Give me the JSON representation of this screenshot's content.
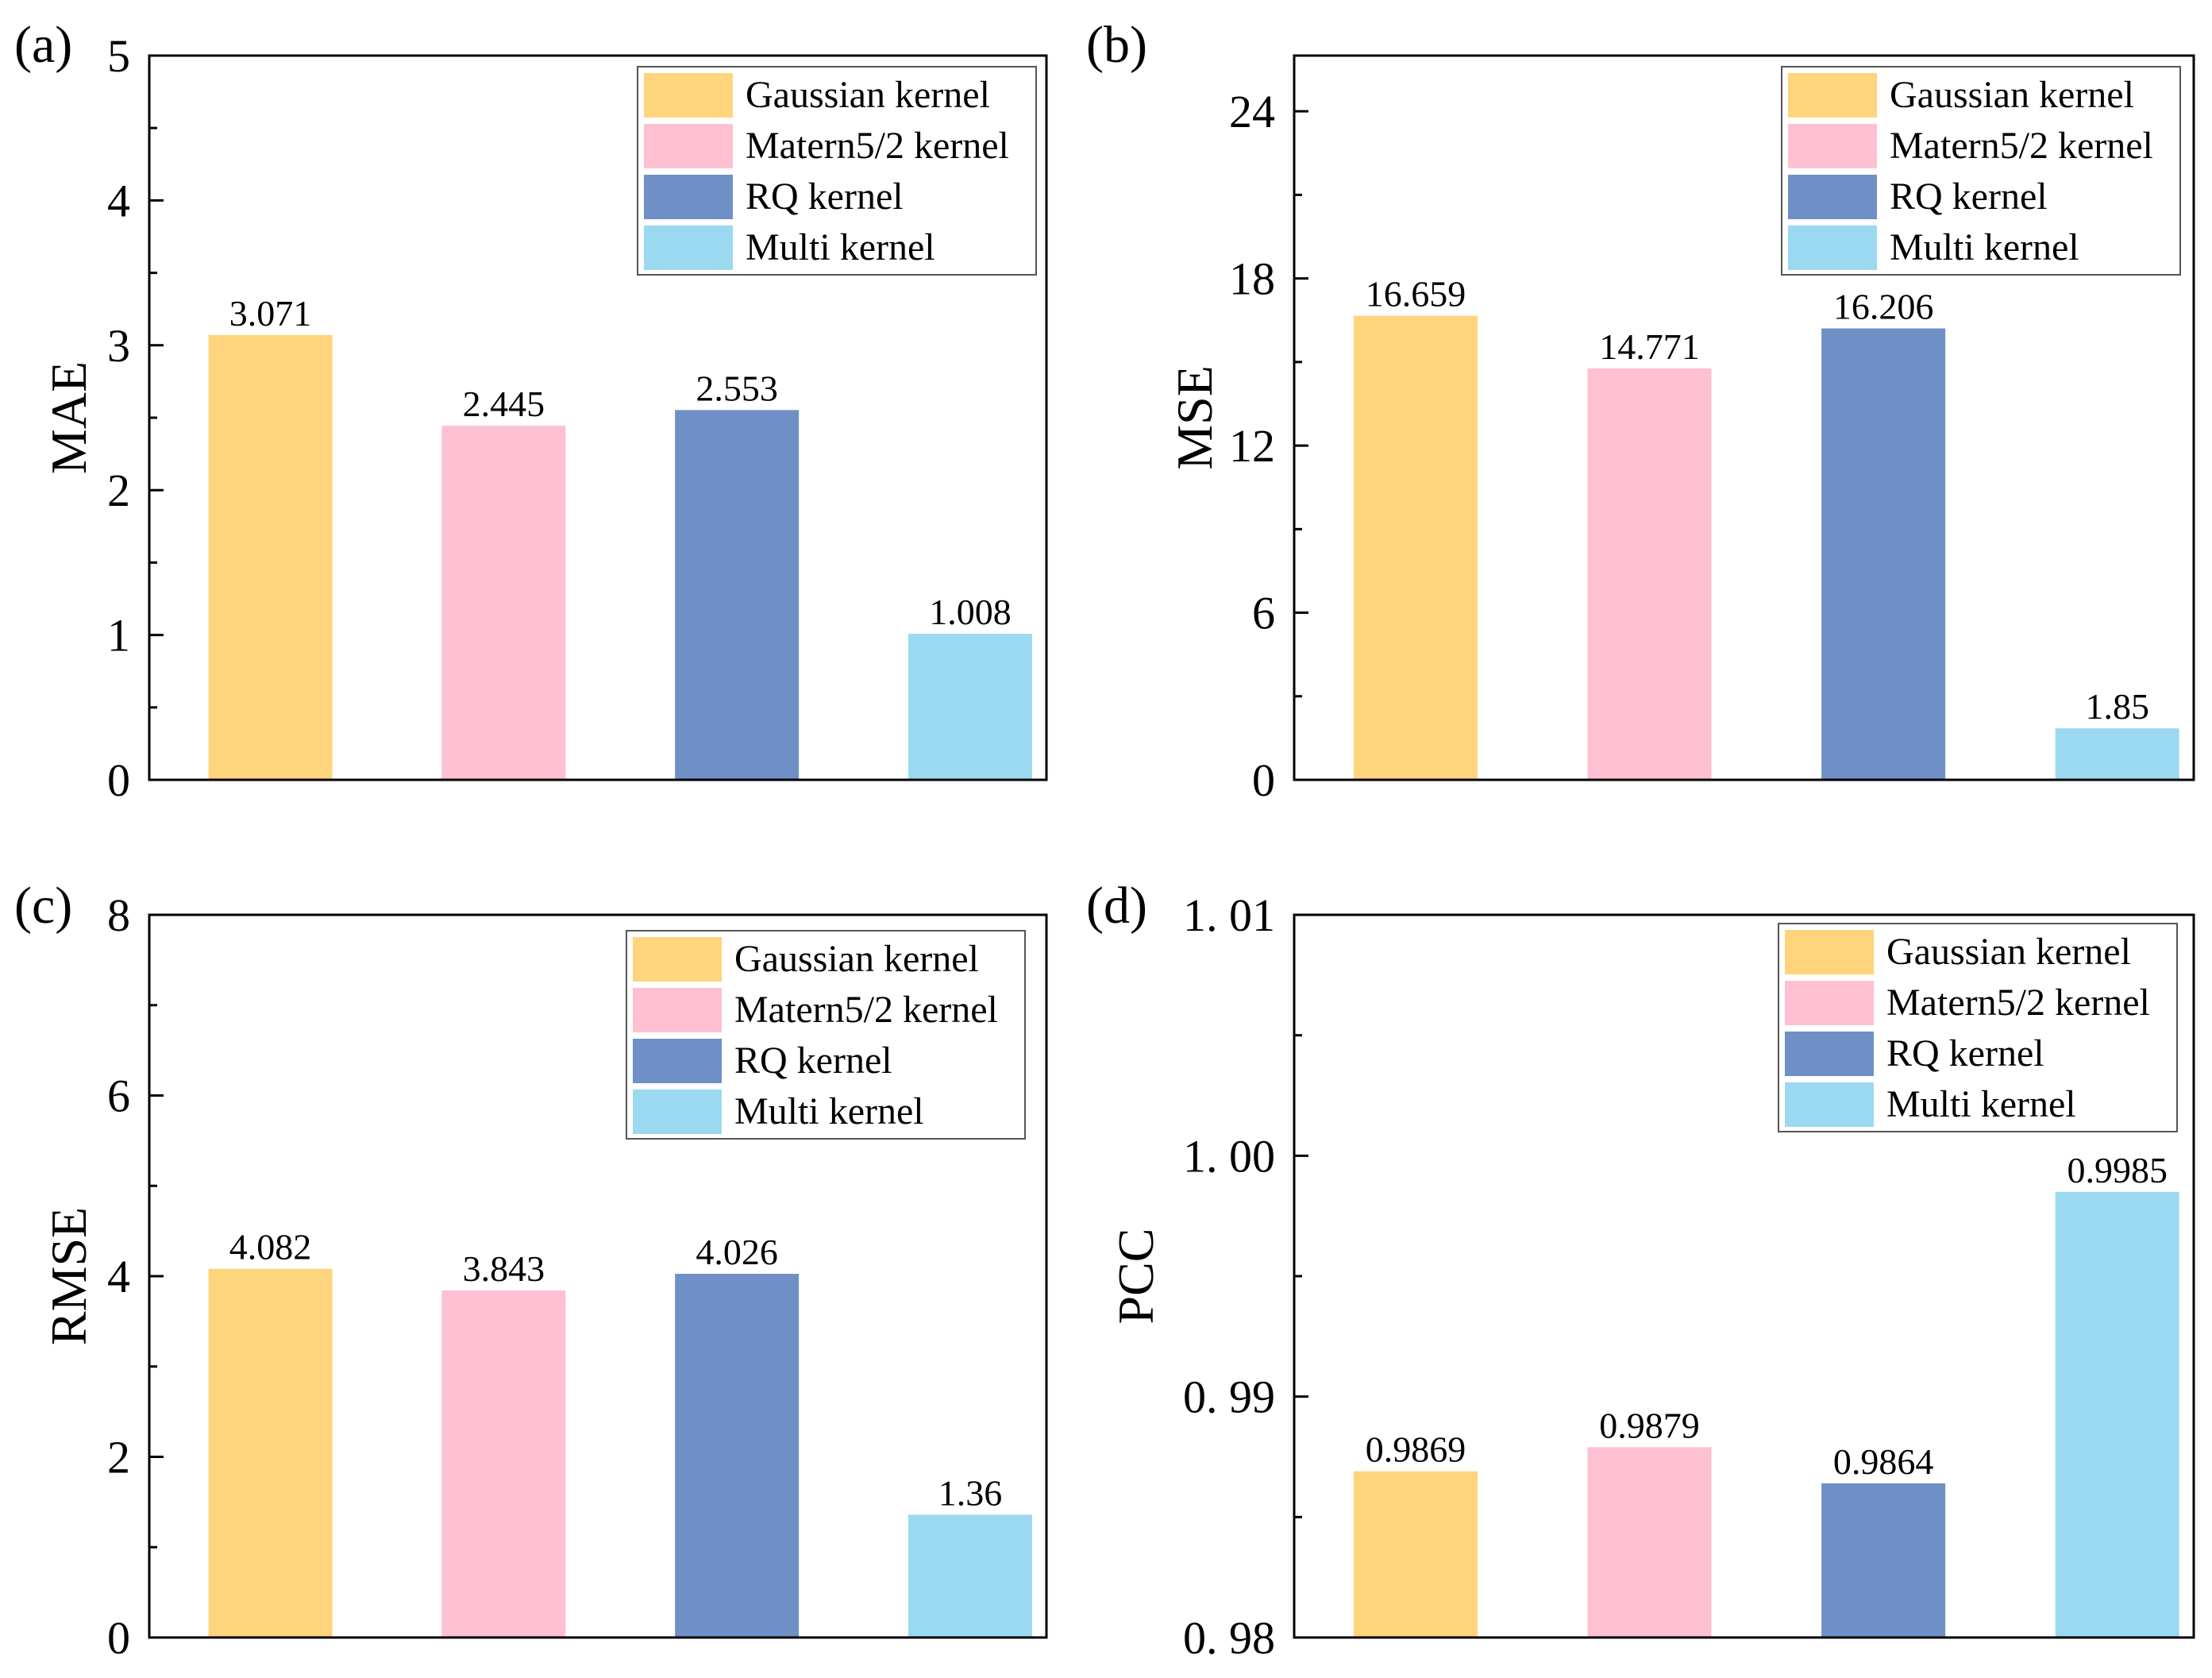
{
  "series_colors": [
    "#FED47C",
    "#FFC0D2",
    "#6E90C6",
    "#9BD9F0"
  ],
  "legend_entries": [
    "Gaussian kernel",
    "Matern5/2 kernel",
    "RQ kernel",
    "Multi kernel"
  ],
  "chart_data": [
    {
      "type": "bar",
      "panel_label": "(a)",
      "ylabel": "MAE",
      "categories": [
        "Gaussian kernel",
        "Matern5/2 kernel",
        "RQ kernel",
        "Multi kernel"
      ],
      "values": [
        3.071,
        2.445,
        2.553,
        1.008
      ],
      "value_labels": [
        "3.071",
        "2.445",
        "2.553",
        "1.008"
      ],
      "ylim": [
        0,
        5
      ],
      "yticks": [
        0,
        1,
        2,
        3,
        4,
        5
      ],
      "ytick_labels": [
        "0",
        "1",
        "2",
        "3",
        "4",
        "5"
      ],
      "legend_position": "top-right"
    },
    {
      "type": "bar",
      "panel_label": "(b)",
      "ylabel": "MSE",
      "categories": [
        "Gaussian kernel",
        "Matern5/2 kernel",
        "RQ kernel",
        "Multi kernel"
      ],
      "values": [
        16.659,
        14.771,
        16.206,
        1.85
      ],
      "value_labels": [
        "16.659",
        "14.771",
        "16.206",
        "1.85"
      ],
      "ylim": [
        0,
        26
      ],
      "yticks": [
        0,
        6,
        12,
        18,
        24
      ],
      "ytick_labels": [
        "0",
        "6",
        "12",
        "18",
        "24"
      ],
      "legend_position": "top-right"
    },
    {
      "type": "bar",
      "panel_label": "(c)",
      "ylabel": "RMSE",
      "categories": [
        "Gaussian kernel",
        "Matern5/2 kernel",
        "RQ kernel",
        "Multi kernel"
      ],
      "values": [
        4.082,
        3.843,
        4.026,
        1.36
      ],
      "value_labels": [
        "4.082",
        "3.843",
        "4.026",
        "1.36"
      ],
      "ylim": [
        0,
        8
      ],
      "yticks": [
        0,
        2,
        4,
        6,
        8
      ],
      "ytick_labels": [
        "0",
        "2",
        "4",
        "6",
        "8"
      ],
      "legend_position": "top-right"
    },
    {
      "type": "bar",
      "panel_label": "(d)",
      "ylabel": "PCC",
      "categories": [
        "Gaussian kernel",
        "Matern5/2 kernel",
        "RQ kernel",
        "Multi kernel"
      ],
      "values": [
        0.9869,
        0.9879,
        0.9864,
        0.9985
      ],
      "value_labels": [
        "0.9869",
        "0.9879",
        "0.9864",
        "0.9985"
      ],
      "ylim": [
        0.98,
        1.01
      ],
      "yticks": [
        0.98,
        0.99,
        1.0,
        1.01
      ],
      "ytick_labels": [
        "0. 98",
        "0. 99",
        "1. 00",
        "1. 01"
      ],
      "legend_position": "top-right"
    }
  ]
}
